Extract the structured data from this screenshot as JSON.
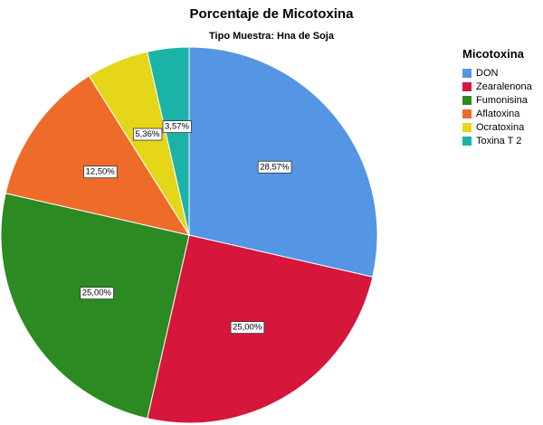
{
  "chart_data": {
    "type": "pie",
    "title": "Porcentaje de Micotoxina",
    "subtitle": "Tipo Muestra: Hna de Soja",
    "legend_title": "Micotoxina",
    "legend_position": "right",
    "start_angle": "12 o'clock",
    "direction": "clockwise",
    "slices": [
      {
        "name": "DON",
        "value": 28.57,
        "label": "28,57%",
        "color": "#5496E3"
      },
      {
        "name": "Zearalenona",
        "value": 25.0,
        "label": "25,00%",
        "color": "#D6163A"
      },
      {
        "name": "Fumonisina",
        "value": 25.0,
        "label": "25,00%",
        "color": "#2B8A22"
      },
      {
        "name": "Aflatoxina",
        "value": 12.5,
        "label": "12,50%",
        "color": "#EE6B2A"
      },
      {
        "name": "Ocratoxina",
        "value": 5.36,
        "label": "5,36%",
        "color": "#E5D619"
      },
      {
        "name": "Toxina T 2",
        "value": 3.57,
        "label": "3,57%",
        "color": "#1BB3A7"
      }
    ]
  }
}
